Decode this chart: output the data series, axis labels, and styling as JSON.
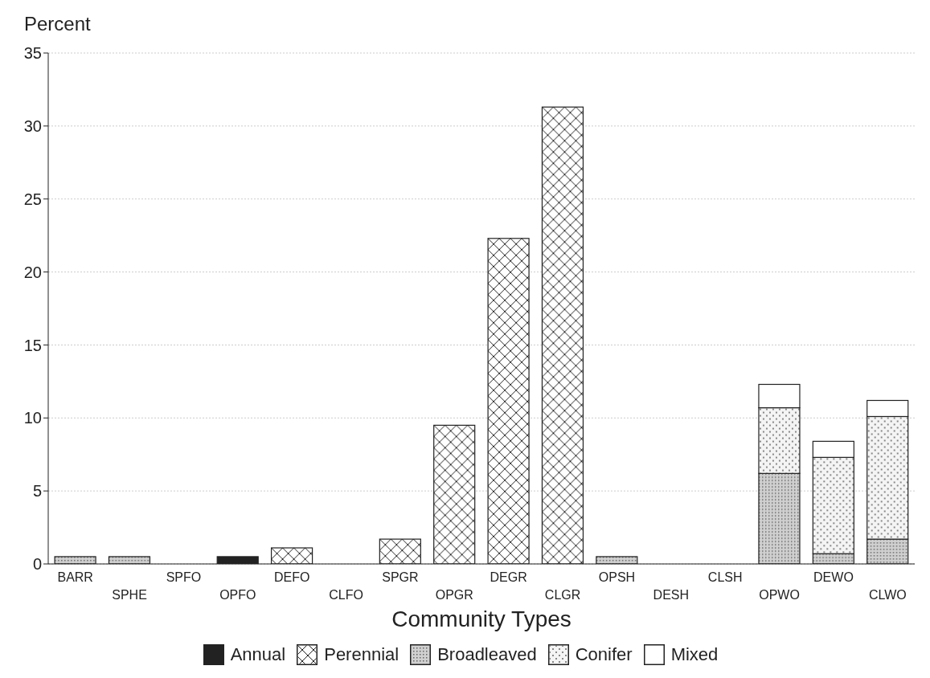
{
  "chart_data": {
    "type": "bar",
    "stacked": true,
    "ylabel": "Percent",
    "xlabel": "Community Types",
    "categories": [
      "BARR",
      "SPHE",
      "SPFO",
      "OPFO",
      "DEFO",
      "CLFO",
      "SPGR",
      "OPGR",
      "DEGR",
      "CLGR",
      "OPSH",
      "DESH",
      "CLSH",
      "OPWO",
      "DEWO",
      "CLWO"
    ],
    "series": [
      {
        "name": "Annual",
        "color": "#222222",
        "values": [
          null,
          null,
          null,
          0.5,
          null,
          null,
          null,
          null,
          null,
          null,
          null,
          null,
          null,
          null,
          null,
          null
        ]
      },
      {
        "name": "Perennial",
        "color": "#ffffff",
        "values": [
          null,
          null,
          null,
          null,
          1.1,
          null,
          1.7,
          9.5,
          22.3,
          31.3,
          null,
          null,
          null,
          null,
          null,
          null
        ]
      },
      {
        "name": "Broadleaved",
        "color": "#d0d0d0",
        "values": [
          0.5,
          0.5,
          null,
          null,
          null,
          null,
          null,
          null,
          null,
          null,
          0.5,
          null,
          null,
          6.2,
          0.7,
          1.7
        ]
      },
      {
        "name": "Conifer",
        "color": "#f4f4f4",
        "values": [
          null,
          null,
          null,
          null,
          null,
          null,
          null,
          null,
          null,
          null,
          null,
          null,
          null,
          4.5,
          6.6,
          8.4
        ]
      },
      {
        "name": "Mixed",
        "color": "#ffffff",
        "values": [
          null,
          null,
          null,
          null,
          null,
          null,
          null,
          null,
          null,
          null,
          null,
          null,
          null,
          1.6,
          1.1,
          1.1
        ]
      }
    ],
    "ylim": [
      0,
      35
    ],
    "yticks": [
      0,
      5,
      10,
      15,
      20,
      25,
      30,
      35
    ],
    "grid": "y",
    "legend": "bottom"
  }
}
